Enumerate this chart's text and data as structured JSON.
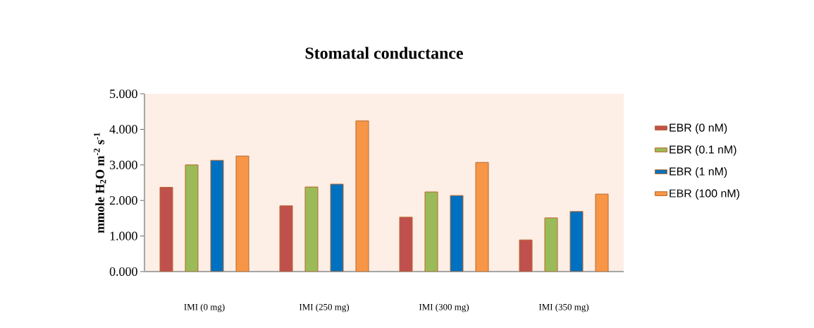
{
  "chart_data": {
    "type": "bar",
    "title": "Stomatal conductance",
    "ylabel": "mmole H$_{2}$O m$^{-2}$ s$^{-1}$",
    "categories": [
      "IMI (0 mg)",
      "IMI (250 mg)",
      "IMI (300 mg)",
      "IMI (350 mg)"
    ],
    "series": [
      {
        "name": "EBR (0 nM)",
        "color": "#c0504d",
        "values": [
          2.37,
          1.85,
          1.53,
          0.89
        ]
      },
      {
        "name": "EBR (0.1 nM)",
        "color": "#9bbb59",
        "values": [
          3.0,
          2.38,
          2.24,
          1.51
        ]
      },
      {
        "name": "EBR (1 nM)",
        "color": "#0070c0",
        "values": [
          3.13,
          2.46,
          2.14,
          1.69
        ]
      },
      {
        "name": "EBR (100 nM)",
        "color": "#f79646",
        "values": [
          3.25,
          4.24,
          3.07,
          2.18
        ]
      }
    ],
    "ylim": [
      0,
      5
    ],
    "yticks": [
      {
        "value": 0,
        "label": "0.000"
      },
      {
        "value": 1,
        "label": "1.000"
      },
      {
        "value": 2,
        "label": "2.000"
      },
      {
        "value": 3,
        "label": "3.000"
      },
      {
        "value": 4,
        "label": "4.000"
      },
      {
        "value": 5,
        "label": "5.000"
      }
    ],
    "grid": false,
    "legend": "right"
  }
}
